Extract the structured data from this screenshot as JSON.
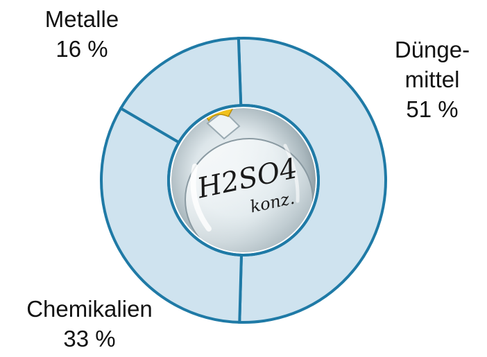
{
  "chart_data": {
    "type": "pie",
    "title": "",
    "center_image_text": [
      "H2SO4",
      "konz."
    ],
    "slices": [
      {
        "name": "Dünge-mittel",
        "label_lines": [
          "Dünge-",
          "mittel"
        ],
        "percent_label": "51 %",
        "value": 51
      },
      {
        "name": "Chemikalien",
        "label_lines": [
          "Chemikalien"
        ],
        "percent_label": "33 %",
        "value": 33
      },
      {
        "name": "Metalle",
        "label_lines": [
          "Metalle"
        ],
        "percent_label": "16 %",
        "value": 16
      }
    ],
    "colors": {
      "fill": "#cfe3ef",
      "stroke": "#1f7aa6"
    }
  }
}
